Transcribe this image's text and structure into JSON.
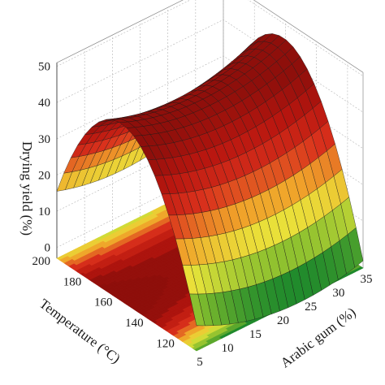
{
  "chart_data": {
    "type": "surface3d",
    "title": "",
    "zlabel": "Drying yield (%)",
    "xlabel": "Arabic gum (%)",
    "ylabel": "Temperature (°C)",
    "x_ticks": [
      5,
      10,
      15,
      20,
      25,
      30,
      35
    ],
    "y_ticks": [
      120,
      140,
      160,
      180,
      200
    ],
    "z_ticks": [
      0,
      10,
      20,
      30,
      40,
      50
    ],
    "xlim": [
      5,
      35
    ],
    "ylim": [
      110,
      200
    ],
    "zlim": [
      0,
      50
    ],
    "model": {
      "description": "quadratic response surface",
      "peak_yield": 41,
      "peak_arabic_gum": 20,
      "peak_temperature": 160,
      "corner_values": [
        {
          "arabic_gum": 5,
          "temperature": 110,
          "yield": 2
        },
        {
          "arabic_gum": 5,
          "temperature": 200,
          "yield": 13
        },
        {
          "arabic_gum": 35,
          "temperature": 200,
          "yield": 22
        },
        {
          "arabic_gum": 35,
          "temperature": 110,
          "yield": 1
        }
      ]
    },
    "colormap": [
      "#208a2c",
      "#86be2e",
      "#e9e43a",
      "#f0a22a",
      "#d9311c",
      "#b8160f",
      "#8e0f0b"
    ],
    "grid": true,
    "contour_projection": true
  }
}
